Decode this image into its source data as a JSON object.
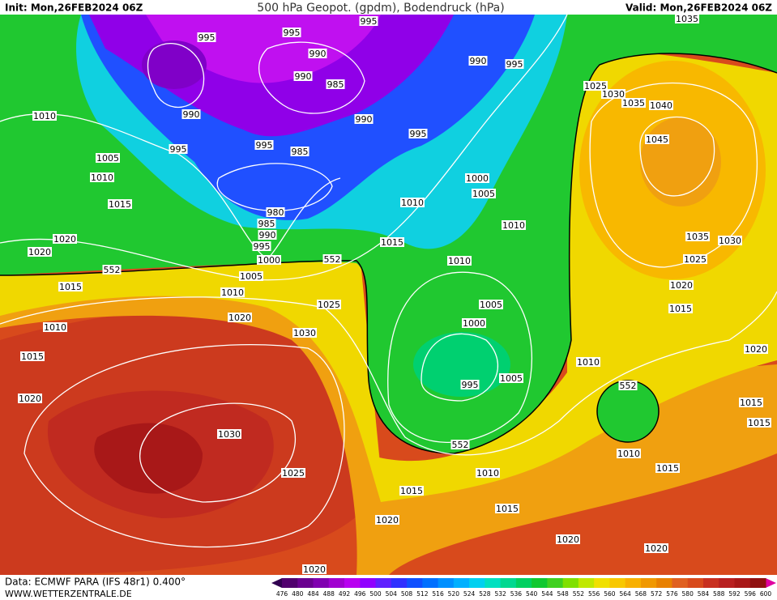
{
  "header": {
    "init": "Init: Mon,26FEB2024 06Z",
    "title": "500 hPa Geopot. (gpdm), Bodendruck (hPa)",
    "valid": "Valid: Mon,26FEB2024 06Z"
  },
  "footer": {
    "source": "Data: ECMWF PARA (IFS 48r1) 0.400°",
    "url": "WWW.WETTERZENTRALE.DE"
  },
  "isobar_labels": [
    995,
    995,
    995,
    990,
    990,
    995,
    990,
    985,
    1025,
    1030,
    1035,
    1040,
    1010,
    990,
    990,
    995,
    1045,
    995,
    995,
    985,
    1005,
    1010,
    1000,
    1005,
    1015,
    1010,
    980,
    1010,
    985,
    990,
    1020,
    1015,
    1035,
    1030,
    995,
    1020,
    1010,
    1000,
    1025,
    552,
    552,
    1005,
    1015,
    1020,
    1010,
    1025,
    1005,
    1015,
    1020,
    1010,
    1000,
    1030,
    1015,
    1020,
    1010,
    995,
    1005,
    552,
    1020,
    1015,
    1015,
    1030,
    552,
    1010,
    1025,
    1015,
    1010,
    1015,
    1015,
    1020,
    1020,
    1020,
    1020,
    1035
  ],
  "colorbar": {
    "labels": [
      476,
      480,
      484,
      488,
      492,
      496,
      500,
      504,
      508,
      512,
      516,
      520,
      524,
      528,
      532,
      536,
      540,
      544,
      548,
      552,
      556,
      560,
      564,
      568,
      572,
      576,
      580,
      584,
      588,
      592,
      596,
      600
    ],
    "colors": [
      "#50006e",
      "#6a0090",
      "#8000b0",
      "#a000d0",
      "#b800f0",
      "#9000ff",
      "#6020ff",
      "#3030ff",
      "#1050ff",
      "#0070ff",
      "#0090ff",
      "#00b0ff",
      "#00d0f0",
      "#00e0c0",
      "#00d890",
      "#00d060",
      "#10c830",
      "#40d020",
      "#80e000",
      "#c0e800",
      "#f0e000",
      "#f8c800",
      "#f8b000",
      "#f09800",
      "#e88000",
      "#e06020",
      "#d84a1c",
      "#c83020",
      "#b82020",
      "#a81818",
      "#901010"
    ],
    "under_color": "#300050",
    "over_color": "#e000a0"
  }
}
